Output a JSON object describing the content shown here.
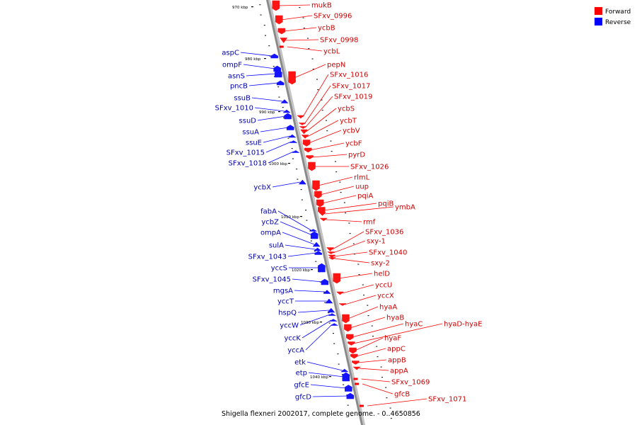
{
  "legend": {
    "forward": {
      "label": "Forward",
      "color": "#ff0000"
    },
    "reverse": {
      "label": "Reverse",
      "color": "#0000ff"
    }
  },
  "caption": "Shigella flexneri 2002017, complete genome. - 0..4650856",
  "kbp_labels": [
    "970 kbp",
    "980 kbp",
    "990 kbp",
    "1000 kbp",
    "1010 kbp",
    "1020 kbp",
    "1030 kbp",
    "1040 kbp"
  ],
  "forward_genes": [
    "mukB",
    "SFxv_0996",
    "ycbB",
    "SFxv_0998",
    "ycbL",
    "pepN",
    "SFxv_1016",
    "SFxv_1017",
    "SFxv_1019",
    "ycbS",
    "ycbT",
    "ycbV",
    "ycbF",
    "pyrD",
    "SFxv_1026",
    "rlmL",
    "uup",
    "pqiA",
    "pqiB",
    "ymbA",
    "rmf",
    "SFxv_1036",
    "sxy-1",
    "SFxv_1040",
    "sxy-2",
    "helD",
    "yccU",
    "yccX",
    "hyaA",
    "hyaB",
    "hyaC",
    "hyaD-hyaE",
    "hyaF",
    "appC",
    "appB",
    "appA",
    "SFxv_1069",
    "gfcB",
    "SFxv_1071"
  ],
  "reverse_genes": [
    "aspC",
    "ompF",
    "asnS",
    "pncB",
    "ssuB",
    "SFxv_1010",
    "ssuD",
    "ssuA",
    "ssuE",
    "SFxv_1015",
    "SFxv_1018",
    "ycbX",
    "fabA",
    "ycbZ",
    "ompA",
    "sulA",
    "SFxv_1043",
    "yccS",
    "SFxv_1045",
    "mgsA",
    "yccT",
    "hspQ",
    "yccW",
    "yccK",
    "yccA",
    "etk",
    "etp",
    "gfcE",
    "gfcD"
  ]
}
